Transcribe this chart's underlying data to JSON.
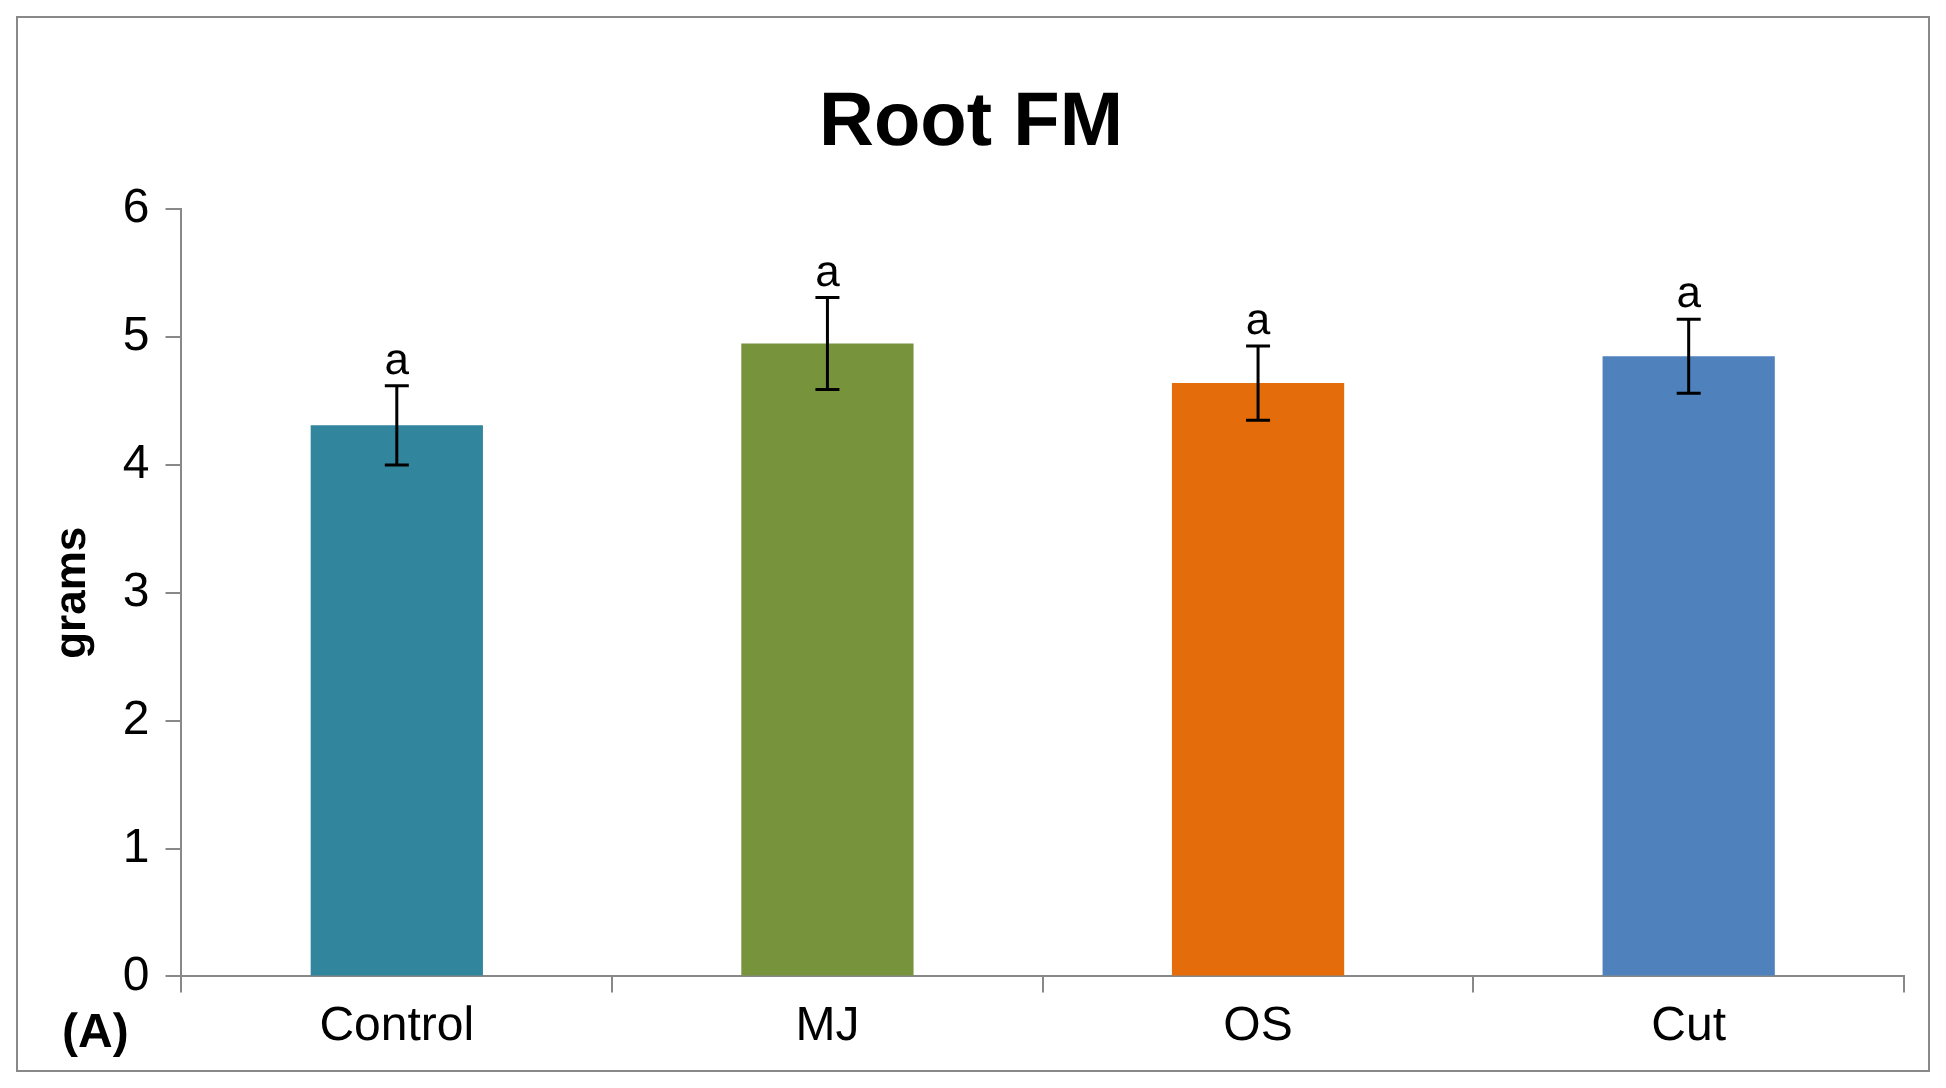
{
  "chart_data": {
    "type": "bar",
    "title": "Root FM",
    "ylabel": "grams",
    "categories": [
      "Control",
      "MJ",
      "OS",
      "Cut"
    ],
    "values": [
      4.31,
      4.95,
      4.64,
      4.85
    ],
    "colors": [
      "#31859c",
      "#77933c",
      "#e46c0a",
      "#4f81bd"
    ],
    "errors": [
      0.31,
      0.36,
      0.29,
      0.29
    ],
    "ylim": [
      0,
      6
    ],
    "yticks": [
      0,
      1,
      2,
      3,
      4,
      5,
      6
    ],
    "grid": false,
    "legend": false,
    "annotations": [
      {
        "text": "a",
        "x": "Control",
        "y": 4.62
      },
      {
        "text": "a",
        "x": "MJ",
        "y": 5.31
      },
      {
        "text": "a",
        "x": "OS",
        "y": 4.93
      },
      {
        "text": "a",
        "x": "Cut",
        "y": 5.14
      },
      "(A)"
    ]
  }
}
